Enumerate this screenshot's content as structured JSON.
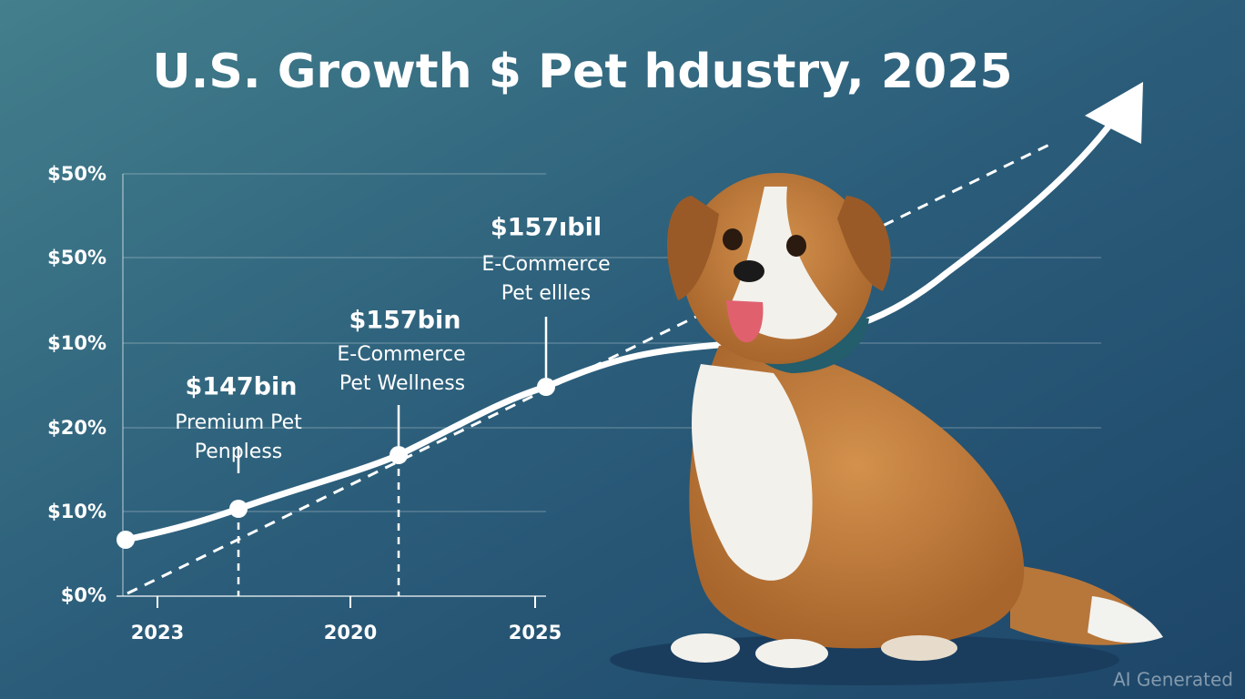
{
  "title": "U.S. Growth $ Pet  hdustry, 2025",
  "y_labels": [
    "$50%",
    "$50%",
    "$10%",
    "$20%",
    "$10%",
    "$0%"
  ],
  "x_labels": [
    "2023",
    "2020",
    "2025"
  ],
  "annotations": [
    {
      "value": "$147bin",
      "lines": [
        "Premium Pet",
        "Penpless"
      ]
    },
    {
      "value": "$157bin",
      "lines": [
        "E-Commerce",
        "Pet Wellness"
      ]
    },
    {
      "value": "$157ıbil",
      "lines": [
        "E-Commerce",
        "Pet ellles"
      ]
    }
  ],
  "watermark": "AI Generated"
}
